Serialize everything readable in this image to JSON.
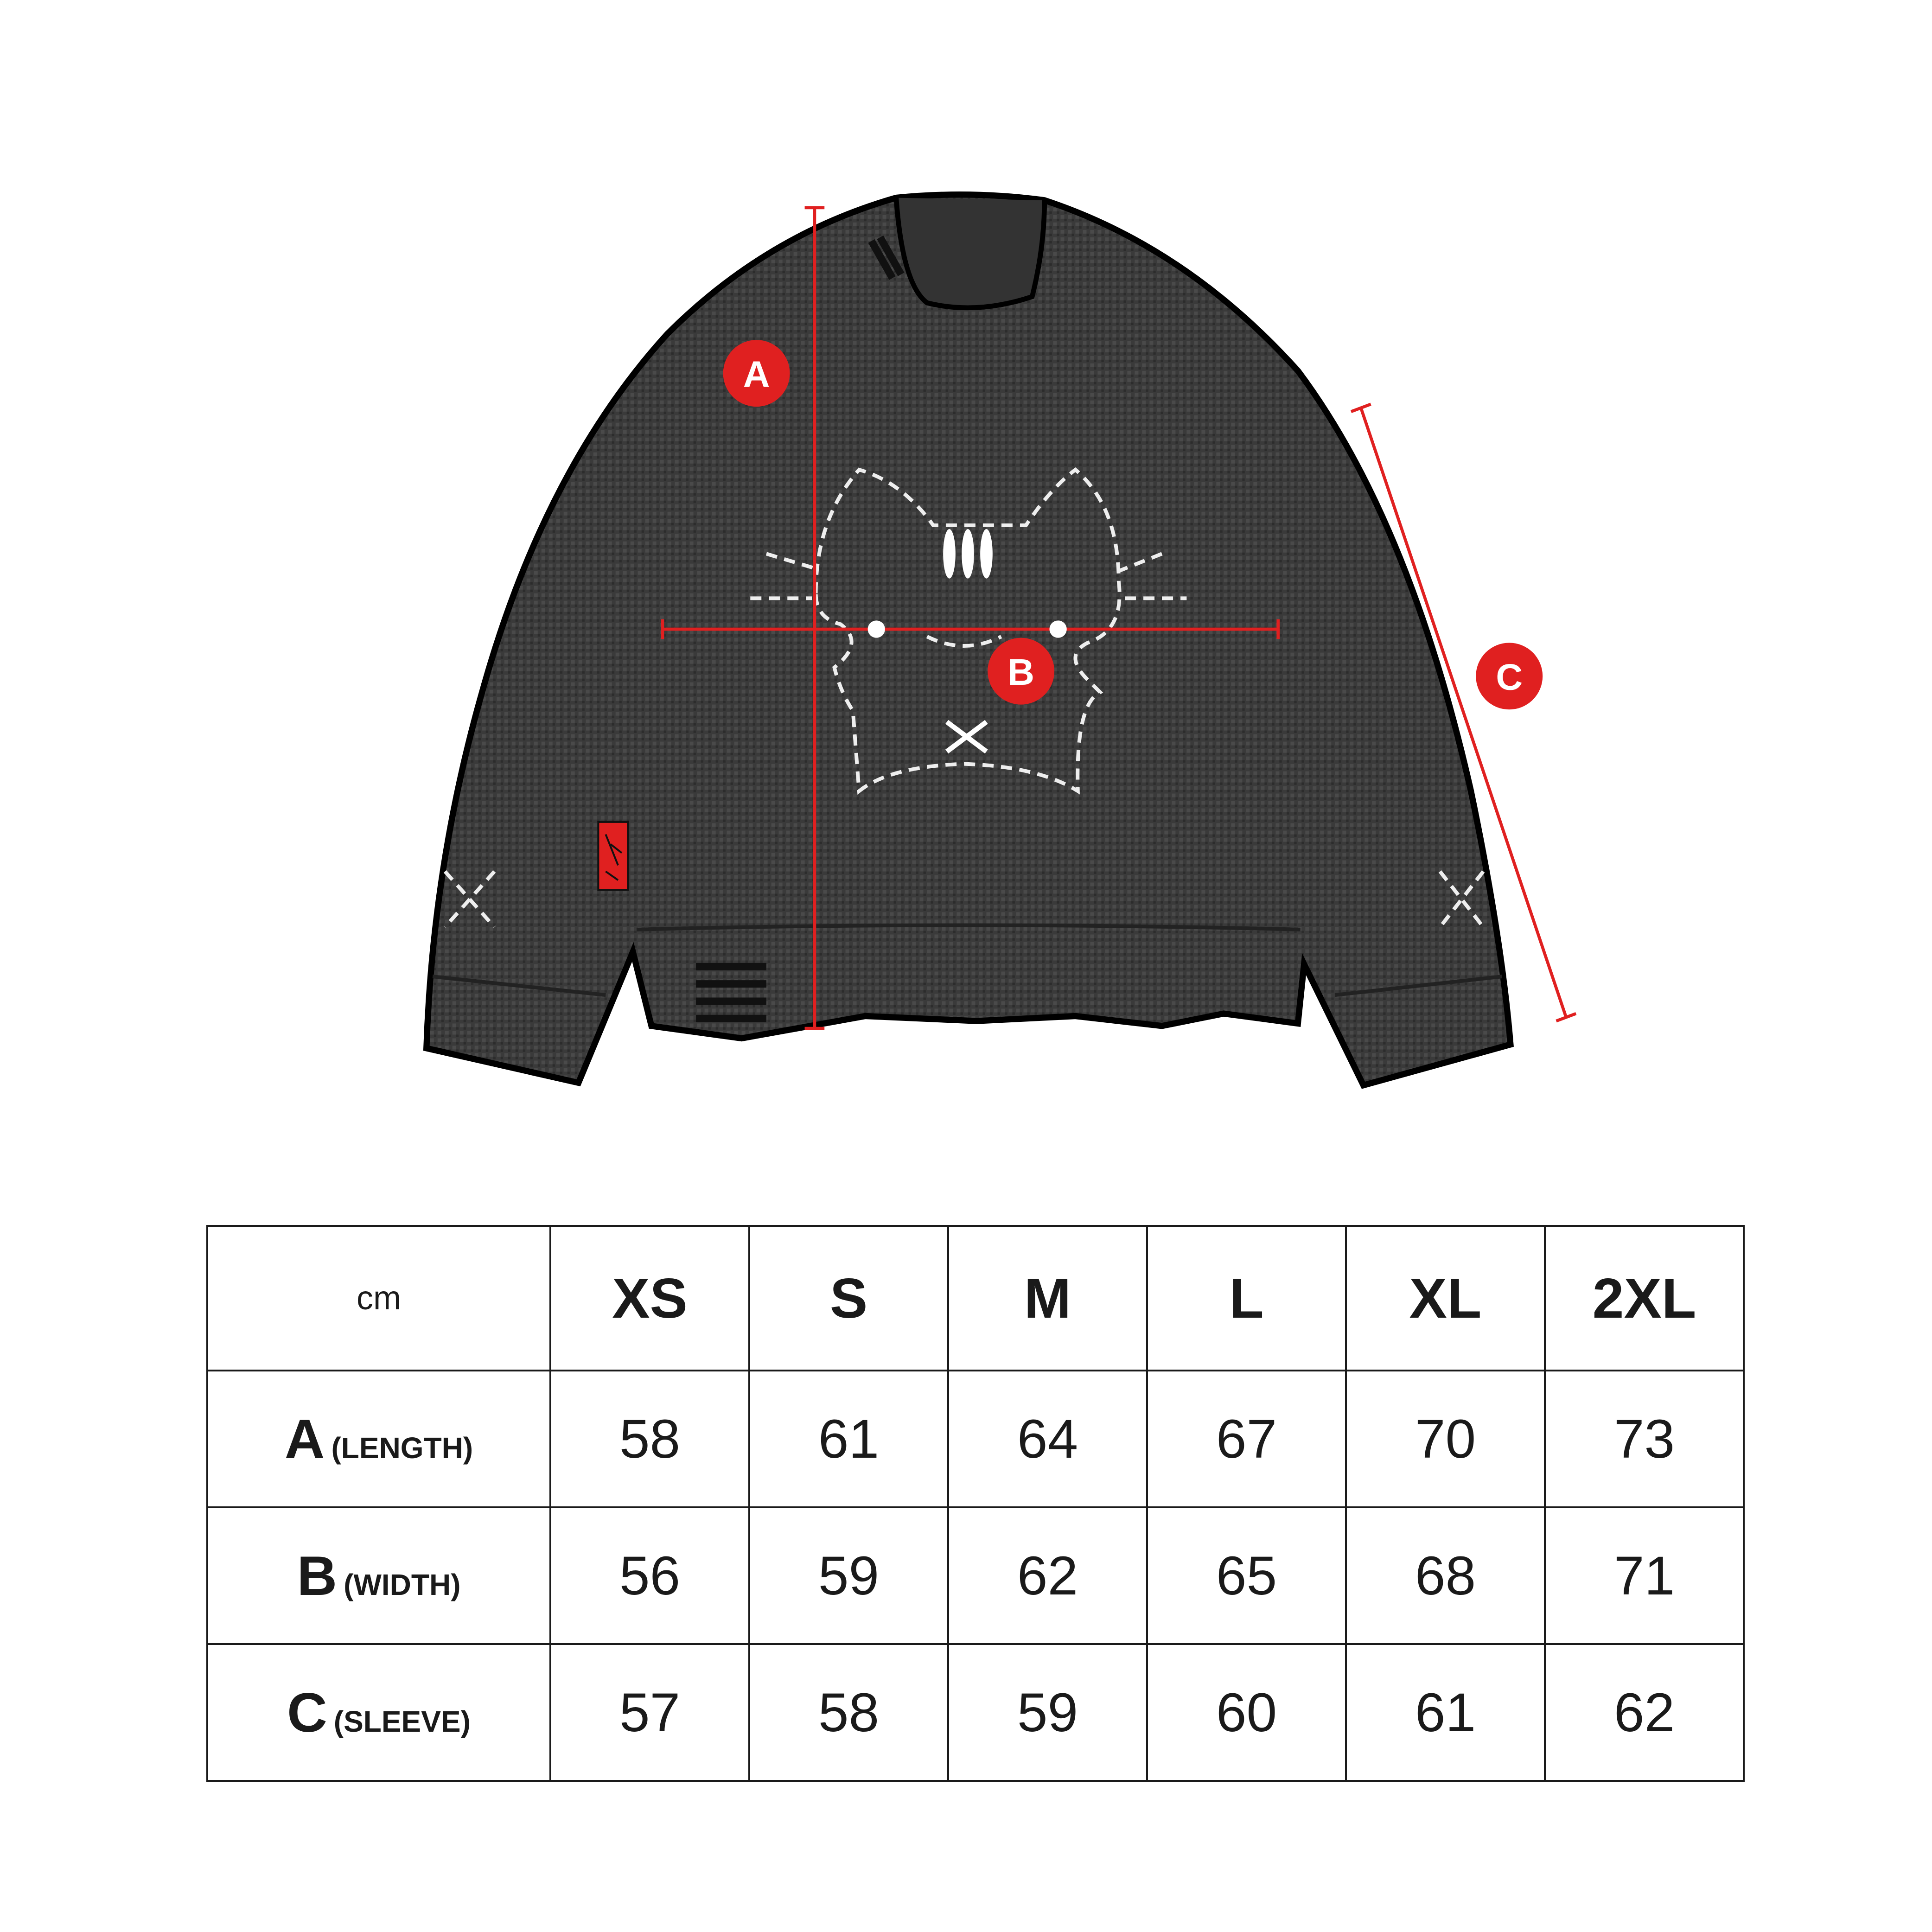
{
  "diagram": {
    "markers": [
      {
        "letter": "A",
        "meaning": "length"
      },
      {
        "letter": "B",
        "meaning": "width"
      },
      {
        "letter": "C",
        "meaning": "sleeve"
      }
    ],
    "accent_color": "#e02020",
    "garment_color": "#3a3a3a",
    "label_tag_signature": "signature"
  },
  "table": {
    "unit": "cm",
    "sizes": [
      "XS",
      "S",
      "M",
      "L",
      "XL",
      "2XL"
    ],
    "rows": [
      {
        "letter": "A",
        "name": "(LENGTH)",
        "values": [
          "58",
          "61",
          "64",
          "67",
          "70",
          "73"
        ]
      },
      {
        "letter": "B",
        "name": "(WIDTH)",
        "values": [
          "56",
          "59",
          "62",
          "65",
          "68",
          "71"
        ]
      },
      {
        "letter": "C",
        "name": "(SLEEVE)",
        "values": [
          "57",
          "58",
          "59",
          "60",
          "61",
          "62"
        ]
      }
    ]
  }
}
